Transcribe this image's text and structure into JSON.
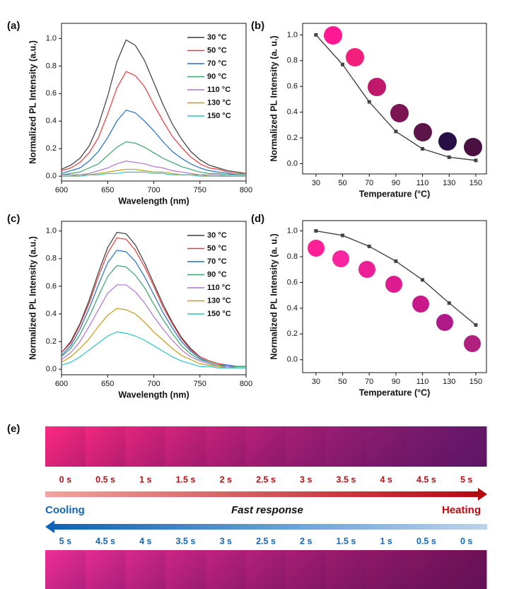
{
  "chart_data": [
    {
      "type": "line",
      "label": "(a)",
      "xlabel": "Wavelength (nm)",
      "ylabel": "Normalized PL Intensity (a.u.)",
      "x": [
        600,
        610,
        620,
        630,
        640,
        650,
        660,
        670,
        680,
        690,
        700,
        710,
        720,
        730,
        740,
        750,
        760,
        770,
        780,
        790,
        800
      ],
      "xlim": [
        600,
        800
      ],
      "xticks": [
        600,
        650,
        700,
        750,
        800
      ],
      "ylim": [
        -0.035,
        1.11
      ],
      "yticks": [
        {
          "value": 0,
          "label": "0.0"
        },
        0.2,
        0.4,
        0.6,
        0.8,
        {
          "value": 1,
          "label": "1.0"
        }
      ],
      "legend": "upper right",
      "series": [
        {
          "name": "30 °C",
          "color": "#3a3a3a",
          "values": [
            0.05,
            0.08,
            0.13,
            0.22,
            0.37,
            0.58,
            0.83,
            0.99,
            0.95,
            0.84,
            0.68,
            0.52,
            0.38,
            0.27,
            0.18,
            0.12,
            0.08,
            0.06,
            0.04,
            0.03,
            0.02
          ]
        },
        {
          "name": "50 °C",
          "color": "#e8393b",
          "values": [
            0.04,
            0.06,
            0.1,
            0.17,
            0.28,
            0.45,
            0.64,
            0.76,
            0.73,
            0.65,
            0.52,
            0.4,
            0.29,
            0.21,
            0.14,
            0.09,
            0.06,
            0.05,
            0.03,
            0.02,
            0.02
          ]
        },
        {
          "name": "70 °C",
          "color": "#1f6fc5",
          "values": [
            0.02,
            0.04,
            0.06,
            0.11,
            0.18,
            0.28,
            0.4,
            0.48,
            0.46,
            0.4,
            0.33,
            0.25,
            0.18,
            0.13,
            0.09,
            0.06,
            0.04,
            0.03,
            0.02,
            0.01,
            0.01
          ]
        },
        {
          "name": "90 °C",
          "color": "#3aa36b",
          "values": [
            0.01,
            0.02,
            0.03,
            0.06,
            0.09,
            0.15,
            0.21,
            0.25,
            0.24,
            0.21,
            0.17,
            0.13,
            0.1,
            0.07,
            0.05,
            0.03,
            0.02,
            0.02,
            0.01,
            0.01,
            0.01
          ]
        },
        {
          "name": "110 °C",
          "color": "#b56fd6",
          "values": [
            0.01,
            0.01,
            0.01,
            0.02,
            0.04,
            0.06,
            0.09,
            0.11,
            0.1,
            0.09,
            0.07,
            0.06,
            0.04,
            0.03,
            0.02,
            0.01,
            0.01,
            0.01,
            0,
            0,
            0
          ]
        },
        {
          "name": "130 °C",
          "color": "#c79a12",
          "values": [
            0,
            0,
            0.01,
            0.01,
            0.02,
            0.03,
            0.04,
            0.05,
            0.05,
            0.04,
            0.03,
            0.03,
            0.02,
            0.01,
            0.01,
            0.01,
            0,
            0,
            0,
            0,
            0
          ]
        },
        {
          "name": "150 °C",
          "color": "#2cc4c4",
          "values": [
            0,
            0,
            0,
            0.01,
            0.01,
            0.02,
            0.02,
            0.03,
            0.03,
            0.03,
            0.02,
            0.02,
            0.01,
            0.01,
            0.01,
            0,
            0,
            0,
            0,
            0,
            0
          ]
        }
      ]
    },
    {
      "type": "line",
      "label": "(b)",
      "xlabel": "Temperature (°C)",
      "ylabel": "Normalized PL Intensity (a. u.)",
      "x": [
        30,
        50,
        70,
        90,
        110,
        130,
        150
      ],
      "xlim": [
        20,
        158
      ],
      "xticks": [
        30,
        50,
        70,
        90,
        110,
        130,
        150
      ],
      "ylim": [
        -0.08,
        1.09
      ],
      "yticks": [
        {
          "value": 0,
          "label": "0.0"
        },
        0.2,
        0.4,
        0.6,
        0.8,
        {
          "value": 1,
          "label": "1.0"
        }
      ],
      "marker": "square",
      "series": [
        {
          "color": "#444444",
          "values": [
            1.0,
            0.77,
            0.48,
            0.25,
            0.115,
            0.05,
            0.025
          ]
        }
      ]
    },
    {
      "type": "line",
      "label": "(c)",
      "xlabel": "Wavelength (nm)",
      "ylabel": "Normalized PL Intensity (a.u.)",
      "x": [
        600,
        610,
        620,
        630,
        640,
        650,
        660,
        670,
        680,
        690,
        700,
        710,
        720,
        730,
        740,
        750,
        760,
        770,
        780,
        790,
        800
      ],
      "xlim": [
        600,
        800
      ],
      "xticks": [
        600,
        650,
        700,
        750,
        800
      ],
      "ylim": [
        -0.04,
        1.07
      ],
      "yticks": [
        {
          "value": 0,
          "label": "0.0"
        },
        0.2,
        0.4,
        0.6,
        0.8,
        {
          "value": 1,
          "label": "1.0"
        }
      ],
      "legend": "upper right",
      "series": [
        {
          "name": "30 °C",
          "color": "#3a3a3a",
          "values": [
            0.12,
            0.2,
            0.33,
            0.5,
            0.7,
            0.88,
            0.99,
            0.98,
            0.9,
            0.77,
            0.62,
            0.47,
            0.34,
            0.23,
            0.15,
            0.09,
            0.06,
            0.04,
            0.03,
            0.02,
            0.02
          ]
        },
        {
          "name": "50 °C",
          "color": "#e8393b",
          "values": [
            0.12,
            0.19,
            0.32,
            0.48,
            0.67,
            0.84,
            0.95,
            0.94,
            0.86,
            0.74,
            0.6,
            0.45,
            0.33,
            0.22,
            0.14,
            0.09,
            0.06,
            0.04,
            0.03,
            0.02,
            0.02
          ]
        },
        {
          "name": "70 °C",
          "color": "#1f6fc5",
          "values": [
            0.1,
            0.17,
            0.29,
            0.44,
            0.61,
            0.77,
            0.86,
            0.85,
            0.78,
            0.67,
            0.54,
            0.41,
            0.3,
            0.2,
            0.13,
            0.08,
            0.05,
            0.03,
            0.03,
            0.02,
            0.02
          ]
        },
        {
          "name": "90 °C",
          "color": "#3aa36b",
          "values": [
            0.09,
            0.15,
            0.25,
            0.38,
            0.53,
            0.67,
            0.75,
            0.74,
            0.68,
            0.59,
            0.47,
            0.36,
            0.26,
            0.17,
            0.11,
            0.07,
            0.05,
            0.03,
            0.02,
            0.02,
            0.02
          ]
        },
        {
          "name": "110 °C",
          "color": "#b56fd6",
          "values": [
            0.07,
            0.12,
            0.2,
            0.31,
            0.43,
            0.55,
            0.61,
            0.61,
            0.56,
            0.48,
            0.38,
            0.29,
            0.21,
            0.14,
            0.09,
            0.06,
            0.04,
            0.02,
            0.02,
            0.01,
            0.01
          ]
        },
        {
          "name": "130 °C",
          "color": "#c79a12",
          "values": [
            0.05,
            0.09,
            0.15,
            0.22,
            0.31,
            0.39,
            0.44,
            0.43,
            0.4,
            0.34,
            0.27,
            0.21,
            0.15,
            0.1,
            0.07,
            0.04,
            0.03,
            0.02,
            0.01,
            0.01,
            0.01
          ]
        },
        {
          "name": "150 °C",
          "color": "#2cc4c4",
          "values": [
            0.03,
            0.05,
            0.09,
            0.14,
            0.19,
            0.24,
            0.27,
            0.26,
            0.24,
            0.21,
            0.17,
            0.13,
            0.09,
            0.06,
            0.04,
            0.02,
            0.02,
            0.01,
            0.01,
            0.01,
            0.01
          ]
        }
      ]
    },
    {
      "type": "line",
      "label": "(d)",
      "xlabel": "Temperature (°C)",
      "ylabel": "Normalized PL Intensity (a. u.)",
      "x": [
        30,
        50,
        70,
        90,
        110,
        130,
        150
      ],
      "xlim": [
        20,
        158
      ],
      "xticks": [
        30,
        50,
        70,
        90,
        110,
        130,
        150
      ],
      "ylim": [
        -0.1,
        1.08
      ],
      "yticks": [
        {
          "value": 0,
          "label": "0.0"
        },
        0.2,
        0.4,
        0.6,
        0.8,
        {
          "value": 1,
          "label": "1.0"
        }
      ],
      "marker": "square",
      "series": [
        {
          "color": "#444444",
          "values": [
            1.0,
            0.965,
            0.88,
            0.765,
            0.62,
            0.44,
            0.27
          ]
        }
      ]
    }
  ],
  "panel_e": {
    "label": "(e)",
    "heating_times": [
      "0 s",
      "0.5 s",
      "1 s",
      "1.5 s",
      "2 s",
      "2.5 s",
      "3 s",
      "3.5 s",
      "4 s",
      "4.5 s",
      "5 s"
    ],
    "cooling": "Cooling",
    "caption": "Fast response",
    "heating": "Heating",
    "cooling_times": [
      "5 s",
      "4.5 s",
      "4 s",
      "3.5 s",
      "3 s",
      "2.5 s",
      "2 s",
      "1.5 s",
      "1 s",
      "0.5 s",
      "0 s"
    ]
  }
}
